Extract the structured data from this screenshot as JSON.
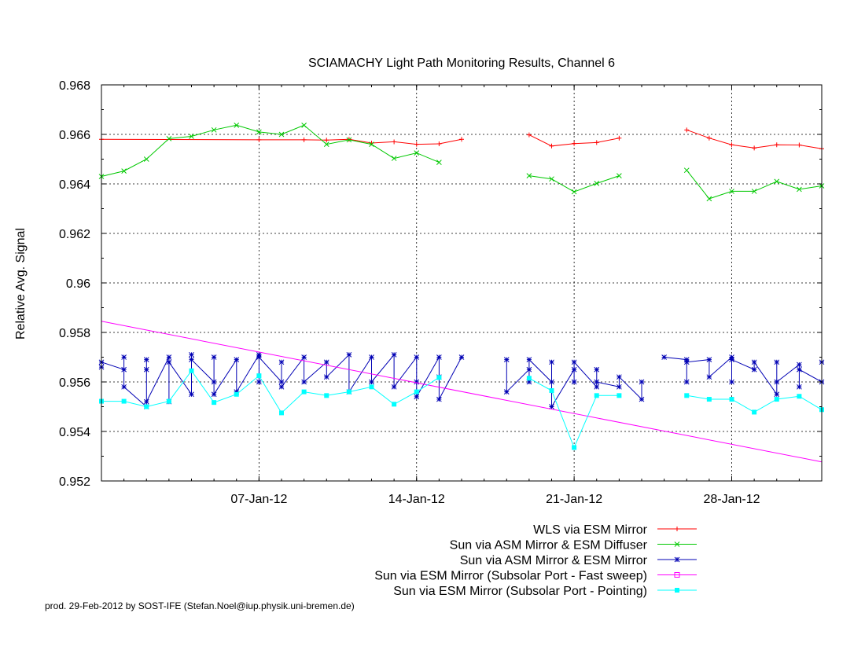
{
  "footer": "prod. 29-Feb-2012 by SOST-IFE (Stefan.Noel@iup.physik.uni-bremen.de)",
  "chart_data": {
    "type": "line",
    "title": "SCIAMACHY Light Path Monitoring Results, Channel 6",
    "xlabel": "",
    "ylabel": "Relative Avg. Signal",
    "xlim": [
      "2011-12-31",
      "2012-02-01"
    ],
    "ylim": [
      0.952,
      0.968
    ],
    "yticks": [
      0.952,
      0.954,
      0.956,
      0.958,
      0.96,
      0.962,
      0.964,
      0.966,
      0.968
    ],
    "ytick_labels": [
      "0.952",
      "0.954",
      "0.956",
      "0.958",
      "0.96",
      "0.962",
      "0.964",
      "0.966",
      "0.968"
    ],
    "xticks": [
      "2012-01-07",
      "2012-01-14",
      "2012-01-21",
      "2012-01-28"
    ],
    "xtick_labels": [
      "07-Jan-12",
      "14-Jan-12",
      "21-Jan-12",
      "28-Jan-12"
    ],
    "grid": true,
    "legend_position": "below-right",
    "series": [
      {
        "name": "WLS via ESM Mirror",
        "color": "#ff0000",
        "marker": "plus",
        "segments": [
          [
            [
              "2011-12-31",
              0.9658
            ],
            [
              "2012-01-07",
              0.96578
            ],
            [
              "2012-01-09",
              0.96578
            ],
            [
              "2012-01-10",
              0.96577
            ],
            [
              "2012-01-11",
              0.9658
            ],
            [
              "2012-01-12",
              0.96565
            ],
            [
              "2012-01-13",
              0.9657
            ],
            [
              "2012-01-14",
              0.9656
            ],
            [
              "2012-01-15",
              0.96562
            ],
            [
              "2012-01-16",
              0.9658
            ]
          ],
          [
            [
              "2012-01-19",
              0.96598
            ],
            [
              "2012-01-20",
              0.96553
            ],
            [
              "2012-01-21",
              0.96563
            ],
            [
              "2012-01-22",
              0.96567
            ],
            [
              "2012-01-23",
              0.96585
            ]
          ],
          [
            [
              "2012-01-26",
              0.96618
            ],
            [
              "2012-01-27",
              0.96585
            ],
            [
              "2012-01-28",
              0.96558
            ],
            [
              "2012-01-29",
              0.96545
            ],
            [
              "2012-01-30",
              0.96558
            ],
            [
              "2012-01-31",
              0.96557
            ],
            [
              "2012-02-01",
              0.96542
            ]
          ]
        ]
      },
      {
        "name": "Sun via ASM Mirror & ESM Diffuser",
        "color": "#00c800",
        "marker": "x",
        "segments": [
          [
            [
              "2011-12-31",
              0.9643
            ],
            [
              "2012-01-01",
              0.96452
            ],
            [
              "2012-01-02",
              0.965
            ],
            [
              "2012-01-03",
              0.96583
            ],
            [
              "2012-01-04",
              0.96592
            ],
            [
              "2012-01-05",
              0.96618
            ],
            [
              "2012-01-06",
              0.96637
            ],
            [
              "2012-01-07",
              0.9661
            ],
            [
              "2012-01-08",
              0.966
            ],
            [
              "2012-01-09",
              0.96637
            ],
            [
              "2012-01-10",
              0.9656
            ],
            [
              "2012-01-11",
              0.96578
            ],
            [
              "2012-01-12",
              0.9656
            ],
            [
              "2012-01-13",
              0.96503
            ],
            [
              "2012-01-14",
              0.96525
            ],
            [
              "2012-01-15",
              0.96487
            ]
          ],
          [
            [
              "2012-01-19",
              0.96433
            ],
            [
              "2012-01-20",
              0.9642
            ],
            [
              "2012-01-21",
              0.96368
            ],
            [
              "2012-01-22",
              0.96402
            ],
            [
              "2012-01-23",
              0.96433
            ]
          ],
          [
            [
              "2012-01-26",
              0.96455
            ],
            [
              "2012-01-27",
              0.9634
            ],
            [
              "2012-01-28",
              0.9637
            ],
            [
              "2012-01-29",
              0.9637
            ],
            [
              "2012-01-30",
              0.9641
            ],
            [
              "2012-01-31",
              0.96378
            ],
            [
              "2012-02-01",
              0.96392
            ]
          ]
        ]
      },
      {
        "name": "Sun via ASM Mirror & ESM Mirror",
        "color": "#0000b4",
        "marker": "star",
        "segments": [
          [
            [
              "2011-12-31",
              0.9566
            ],
            [
              "2011-12-31",
              0.9568
            ],
            [
              "2012-01-01",
              0.9565
            ],
            [
              "2012-01-01",
              0.957
            ],
            [
              "2012-01-01",
              0.9558
            ],
            [
              "2012-01-02",
              0.955
            ],
            [
              "2012-01-02",
              0.9565
            ],
            [
              "2012-01-02",
              0.9569
            ],
            [
              "2012-01-02",
              0.9552
            ],
            [
              "2012-01-03",
              0.957
            ],
            [
              "2012-01-03",
              0.9552
            ],
            [
              "2012-01-03",
              0.9568
            ],
            [
              "2012-01-04",
              0.9555
            ],
            [
              "2012-01-04",
              0.9571
            ],
            [
              "2012-01-04",
              0.9569
            ],
            [
              "2012-01-05",
              0.956
            ],
            [
              "2012-01-05",
              0.957
            ],
            [
              "2012-01-05",
              0.9555
            ],
            [
              "2012-01-06",
              0.9569
            ],
            [
              "2012-01-06",
              0.9556
            ],
            [
              "2012-01-07",
              0.9571
            ],
            [
              "2012-01-07",
              0.956
            ],
            [
              "2012-01-07",
              0.957
            ],
            [
              "2012-01-08",
              0.956
            ],
            [
              "2012-01-08",
              0.9568
            ],
            [
              "2012-01-08",
              0.9558
            ],
            [
              "2012-01-09",
              0.957
            ],
            [
              "2012-01-09",
              0.956
            ],
            [
              "2012-01-10",
              0.9568
            ],
            [
              "2012-01-10",
              0.9562
            ],
            [
              "2012-01-11",
              0.9571
            ],
            [
              "2012-01-11",
              0.9556
            ],
            [
              "2012-01-12",
              0.957
            ],
            [
              "2012-01-12",
              0.956
            ],
            [
              "2012-01-13",
              0.9571
            ],
            [
              "2012-01-13",
              0.9558
            ],
            [
              "2012-01-14",
              0.957
            ],
            [
              "2012-01-14",
              0.956
            ],
            [
              "2012-01-14",
              0.9554
            ],
            [
              "2012-01-15",
              0.957
            ],
            [
              "2012-01-15",
              0.9562
            ],
            [
              "2012-01-15",
              0.9553
            ],
            [
              "2012-01-16",
              0.957
            ]
          ],
          [
            [
              "2012-01-18",
              0.9569
            ],
            [
              "2012-01-18",
              0.9556
            ],
            [
              "2012-01-19",
              0.9565
            ],
            [
              "2012-01-19",
              0.956
            ],
            [
              "2012-01-19",
              0.9569
            ],
            [
              "2012-01-20",
              0.956
            ],
            [
              "2012-01-20",
              0.9568
            ],
            [
              "2012-01-20",
              0.955
            ],
            [
              "2012-01-21",
              0.9565
            ],
            [
              "2012-01-21",
              0.956
            ],
            [
              "2012-01-21",
              0.9568
            ],
            [
              "2012-01-22",
              0.9558
            ],
            [
              "2012-01-22",
              0.9565
            ],
            [
              "2012-01-22",
              0.956
            ],
            [
              "2012-01-23",
              0.9558
            ],
            [
              "2012-01-23",
              0.9562
            ],
            [
              "2012-01-24",
              0.9553
            ],
            [
              "2012-01-24",
              0.956
            ]
          ],
          [
            [
              "2012-01-25",
              0.957
            ],
            [
              "2012-01-26",
              0.9569
            ],
            [
              "2012-01-26",
              0.956
            ],
            [
              "2012-01-26",
              0.9568
            ],
            [
              "2012-01-27",
              0.9569
            ],
            [
              "2012-01-27",
              0.9562
            ],
            [
              "2012-01-28",
              0.957
            ],
            [
              "2012-01-28",
              0.956
            ],
            [
              "2012-01-28",
              0.9569
            ],
            [
              "2012-01-29",
              0.9565
            ],
            [
              "2012-01-29",
              0.9568
            ],
            [
              "2012-01-30",
              0.9555
            ],
            [
              "2012-01-30",
              0.9568
            ],
            [
              "2012-01-30",
              0.956
            ],
            [
              "2012-01-31",
              0.9567
            ],
            [
              "2012-01-31",
              0.9558
            ],
            [
              "2012-01-31",
              0.9565
            ],
            [
              "2012-02-01",
              0.956
            ],
            [
              "2012-02-01",
              0.9568
            ]
          ]
        ]
      },
      {
        "name": "Sun via ESM Mirror (Subsolar Port - Fast sweep)",
        "color": "#ff00ff",
        "marker": "open-square",
        "segments": [
          [
            [
              "2011-12-31",
              0.95845
            ],
            [
              "2012-02-01",
              0.95277
            ]
          ]
        ]
      },
      {
        "name": "Sun via ESM Mirror (Subsolar Port - Pointing)",
        "color": "#00ffff",
        "marker": "filled-square",
        "segments": [
          [
            [
              "2011-12-31",
              0.95522
            ],
            [
              "2012-01-01",
              0.95522
            ],
            [
              "2012-01-02",
              0.955
            ],
            [
              "2012-01-03",
              0.95522
            ],
            [
              "2012-01-04",
              0.95645
            ],
            [
              "2012-01-05",
              0.95517
            ],
            [
              "2012-01-06",
              0.9555
            ],
            [
              "2012-01-07",
              0.95625
            ],
            [
              "2012-01-08",
              0.95475
            ],
            [
              "2012-01-09",
              0.9556
            ],
            [
              "2012-01-10",
              0.95545
            ],
            [
              "2012-01-11",
              0.9556
            ],
            [
              "2012-01-12",
              0.9558
            ],
            [
              "2012-01-13",
              0.9551
            ],
            [
              "2012-01-14",
              0.9556
            ],
            [
              "2012-01-15",
              0.95618
            ]
          ],
          [
            [
              "2012-01-19",
              0.95615
            ],
            [
              "2012-01-20",
              0.95565
            ],
            [
              "2012-01-21",
              0.95335
            ],
            [
              "2012-01-22",
              0.95545
            ],
            [
              "2012-01-23",
              0.95545
            ]
          ],
          [
            [
              "2012-01-26",
              0.95545
            ],
            [
              "2012-01-27",
              0.9553
            ],
            [
              "2012-01-28",
              0.9553
            ],
            [
              "2012-01-29",
              0.95478
            ],
            [
              "2012-01-30",
              0.9553
            ],
            [
              "2012-01-31",
              0.95542
            ],
            [
              "2012-02-01",
              0.95488
            ]
          ]
        ]
      }
    ]
  }
}
